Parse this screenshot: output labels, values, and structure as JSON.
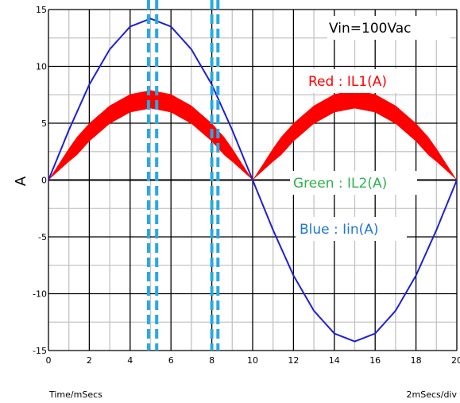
{
  "chart_data": {
    "type": "line",
    "title": "",
    "xlabel": "Time/mSecs",
    "ylabel": "A",
    "scale_label": "2mSecs/div",
    "xlim": [
      0,
      20
    ],
    "ylim": [
      -15,
      15
    ],
    "x_ticks": [
      0,
      2,
      4,
      6,
      8,
      10,
      12,
      14,
      16,
      18,
      20
    ],
    "y_ticks": [
      15,
      10,
      5,
      0,
      -5,
      -10,
      -15
    ],
    "grid": true,
    "annotations": [
      "Vin=100Vac",
      "Red : IL1(A)",
      "Green : IL2(A)",
      "Blue : Iin(A)"
    ],
    "series": [
      {
        "name": "Iin(A)",
        "color": "#1f1fd6",
        "x": [
          0,
          1,
          2,
          3,
          4,
          5,
          6,
          7,
          8,
          9,
          10,
          11,
          12,
          13,
          14,
          15,
          16,
          17,
          18,
          19,
          20
        ],
        "y": [
          0,
          4.4,
          8.4,
          11.5,
          13.5,
          14.2,
          13.5,
          11.5,
          8.4,
          4.4,
          0,
          -4.4,
          -8.4,
          -11.5,
          -13.5,
          -14.2,
          -13.5,
          -11.5,
          -8.4,
          -4.4,
          0
        ]
      },
      {
        "name": "IL1(A)",
        "color": "#ff0000",
        "x": [
          0,
          1,
          2,
          3,
          4,
          5,
          6,
          7,
          8,
          9,
          10,
          11,
          12,
          13,
          14,
          15,
          16,
          17,
          18,
          19,
          20
        ],
        "y": [
          0,
          2.2,
          4.2,
          5.75,
          6.75,
          7.1,
          6.75,
          5.75,
          4.2,
          2.2,
          0,
          2.2,
          4.2,
          5.75,
          6.75,
          7.1,
          6.75,
          5.75,
          4.2,
          2.2,
          0
        ],
        "ripple": 0.8
      }
    ],
    "markers": [
      {
        "x": 4.9,
        "color": "#29a8e0"
      },
      {
        "x": 5.3,
        "color": "#29a8e0"
      },
      {
        "x": 8.0,
        "color": "#29a8e0"
      },
      {
        "x": 8.3,
        "color": "#29a8e0"
      }
    ]
  },
  "annotations": {
    "vin": {
      "text": "Vin=100Vac",
      "color": "#000000"
    },
    "red": {
      "text": "Red : IL1(A)",
      "color": "#ff0000"
    },
    "green": {
      "text": "Green : IL2(A)",
      "color": "#2bb24c"
    },
    "blue": {
      "text": "Blue : Iin(A)",
      "color": "#1f77d0"
    }
  },
  "footer": {
    "left": "Time/mSecs",
    "right": "2mSecs/div"
  }
}
